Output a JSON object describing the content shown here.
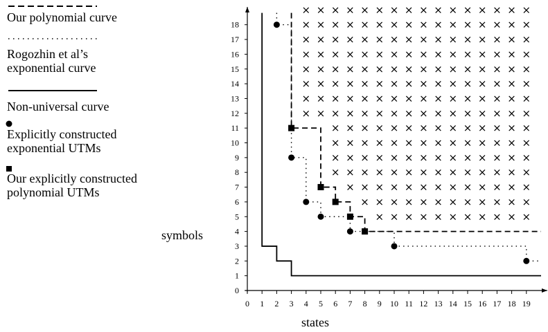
{
  "legend": {
    "polynomial": "Our polynomial curve",
    "rogozhin": "Rogozhin et al’s\nexponential curve",
    "nonuniversal": "Non-universal curve",
    "exp_utms": "Explicitly constructed\nexponential UTMs",
    "poly_utms": "Our explicitly constructed\npolynomial UTMs"
  },
  "chart_data": {
    "type": "scatter",
    "xlabel": "states",
    "ylabel": "symbols",
    "xlim": [
      0,
      20
    ],
    "ylim": [
      0,
      18
    ],
    "x_ticks": [
      0,
      1,
      2,
      3,
      4,
      5,
      6,
      7,
      8,
      9,
      10,
      11,
      12,
      13,
      14,
      15,
      16,
      17,
      18,
      19
    ],
    "y_ticks": [
      0,
      1,
      2,
      3,
      4,
      5,
      6,
      7,
      8,
      9,
      10,
      11,
      12,
      13,
      14,
      15,
      16,
      17,
      18
    ],
    "legend_placement": "left",
    "series": [
      {
        "name": "Our polynomial curve",
        "kind": "dashed-step",
        "points": [
          [
            3,
            18.8
          ],
          [
            3,
            11
          ],
          [
            5,
            11
          ],
          [
            5,
            7
          ],
          [
            6,
            7
          ],
          [
            6,
            6
          ],
          [
            7,
            6
          ],
          [
            7,
            5
          ],
          [
            8,
            5
          ],
          [
            8,
            4
          ],
          [
            20,
            4
          ]
        ]
      },
      {
        "name": "Rogozhin et al’s exponential curve",
        "kind": "dotted-step",
        "points": [
          [
            2,
            18.8
          ],
          [
            2,
            18
          ],
          [
            3,
            18
          ],
          [
            3,
            9
          ],
          [
            4,
            9
          ],
          [
            4,
            6
          ],
          [
            5,
            6
          ],
          [
            5,
            5
          ],
          [
            7,
            5
          ],
          [
            7,
            4
          ],
          [
            10,
            4
          ],
          [
            10,
            3
          ],
          [
            19,
            3
          ],
          [
            19,
            2
          ],
          [
            20,
            2
          ]
        ]
      },
      {
        "name": "Non-universal curve",
        "kind": "solid-step",
        "points": [
          [
            1,
            18.8
          ],
          [
            1,
            3
          ],
          [
            2,
            3
          ],
          [
            2,
            2
          ],
          [
            3,
            2
          ],
          [
            3,
            1
          ],
          [
            20,
            1
          ]
        ]
      },
      {
        "name": "Explicitly constructed exponential UTMs",
        "kind": "circle",
        "points": [
          [
            2,
            18
          ],
          [
            3,
            9
          ],
          [
            4,
            6
          ],
          [
            5,
            5
          ],
          [
            7,
            4
          ],
          [
            10,
            3
          ],
          [
            19,
            2
          ]
        ]
      },
      {
        "name": "Our explicitly constructed polynomial UTMs",
        "kind": "square",
        "points": [
          [
            3,
            11
          ],
          [
            5,
            7
          ],
          [
            6,
            6
          ],
          [
            7,
            5
          ],
          [
            8,
            4
          ]
        ]
      }
    ],
    "universal_region_marker": "×"
  }
}
